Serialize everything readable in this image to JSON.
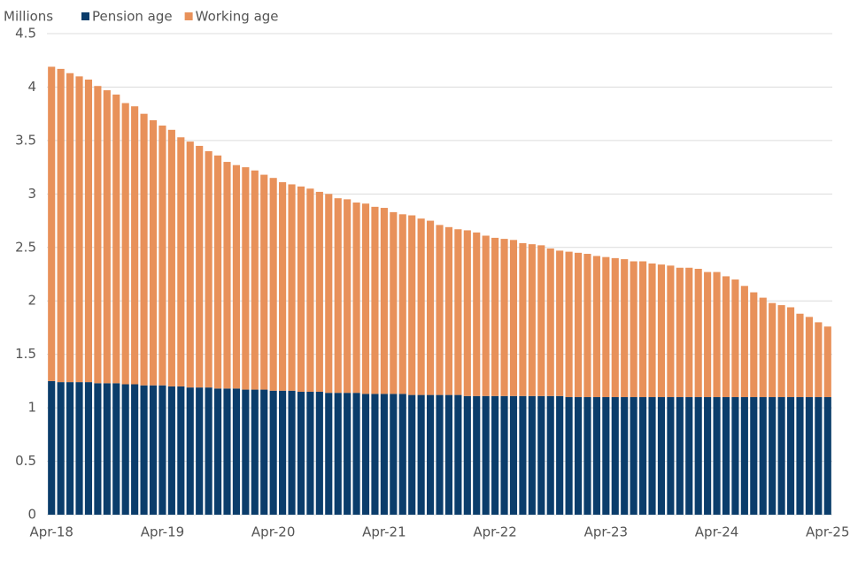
{
  "chart_data": {
    "type": "stacked-bar",
    "y_label": "Millions",
    "categories": [
      "Apr-18",
      null,
      null,
      null,
      null,
      null,
      null,
      null,
      null,
      null,
      null,
      null,
      "Apr-19",
      null,
      null,
      null,
      null,
      null,
      null,
      null,
      null,
      null,
      null,
      null,
      "Apr-20",
      null,
      null,
      null,
      null,
      null,
      null,
      null,
      null,
      null,
      null,
      null,
      "Apr-21",
      null,
      null,
      null,
      null,
      null,
      null,
      null,
      null,
      null,
      null,
      null,
      "Apr-22",
      null,
      null,
      null,
      null,
      null,
      null,
      null,
      null,
      null,
      null,
      null,
      "Apr-23",
      null,
      null,
      null,
      null,
      null,
      null,
      null,
      null,
      null,
      null,
      null,
      "Apr-24",
      null,
      null,
      null,
      null,
      null,
      null,
      null,
      null,
      null,
      null,
      null,
      "Apr-25"
    ],
    "series": [
      {
        "name": "Pension age",
        "color": "#0b3d6b",
        "values": [
          1.25,
          1.24,
          1.24,
          1.24,
          1.24,
          1.23,
          1.23,
          1.23,
          1.22,
          1.22,
          1.21,
          1.21,
          1.21,
          1.2,
          1.2,
          1.19,
          1.19,
          1.19,
          1.18,
          1.18,
          1.18,
          1.17,
          1.17,
          1.17,
          1.16,
          1.16,
          1.16,
          1.15,
          1.15,
          1.15,
          1.14,
          1.14,
          1.14,
          1.14,
          1.13,
          1.13,
          1.13,
          1.13,
          1.13,
          1.12,
          1.12,
          1.12,
          1.12,
          1.12,
          1.12,
          1.11,
          1.11,
          1.11,
          1.11,
          1.11,
          1.11,
          1.11,
          1.11,
          1.11,
          1.11,
          1.11,
          1.1,
          1.1,
          1.1,
          1.1,
          1.1,
          1.1,
          1.1,
          1.1,
          1.1,
          1.1,
          1.1,
          1.1,
          1.1,
          1.1,
          1.1,
          1.1,
          1.1,
          1.1,
          1.1,
          1.1,
          1.1,
          1.1,
          1.1,
          1.1,
          1.1,
          1.1,
          1.1,
          1.1,
          1.1
        ]
      },
      {
        "name": "Working age",
        "color": "#e8915a",
        "values": [
          2.94,
          2.93,
          2.89,
          2.86,
          2.83,
          2.78,
          2.74,
          2.7,
          2.63,
          2.6,
          2.54,
          2.48,
          2.43,
          2.4,
          2.33,
          2.3,
          2.26,
          2.21,
          2.18,
          2.12,
          2.09,
          2.08,
          2.05,
          2.01,
          1.99,
          1.95,
          1.93,
          1.92,
          1.9,
          1.87,
          1.86,
          1.82,
          1.81,
          1.78,
          1.78,
          1.75,
          1.74,
          1.7,
          1.68,
          1.68,
          1.65,
          1.63,
          1.59,
          1.57,
          1.55,
          1.55,
          1.53,
          1.5,
          1.48,
          1.47,
          1.46,
          1.43,
          1.42,
          1.41,
          1.38,
          1.36,
          1.36,
          1.35,
          1.34,
          1.32,
          1.31,
          1.3,
          1.29,
          1.27,
          1.27,
          1.25,
          1.24,
          1.23,
          1.21,
          1.21,
          1.2,
          1.17,
          1.17,
          1.13,
          1.1,
          1.04,
          0.98,
          0.93,
          0.88,
          0.86,
          0.84,
          0.78,
          0.75,
          0.7,
          0.66
        ]
      }
    ],
    "ylim": [
      0,
      4.5
    ],
    "yticks": [
      0,
      0.5,
      1,
      1.5,
      2,
      2.5,
      3,
      3.5,
      4,
      4.5
    ],
    "grid": true
  }
}
